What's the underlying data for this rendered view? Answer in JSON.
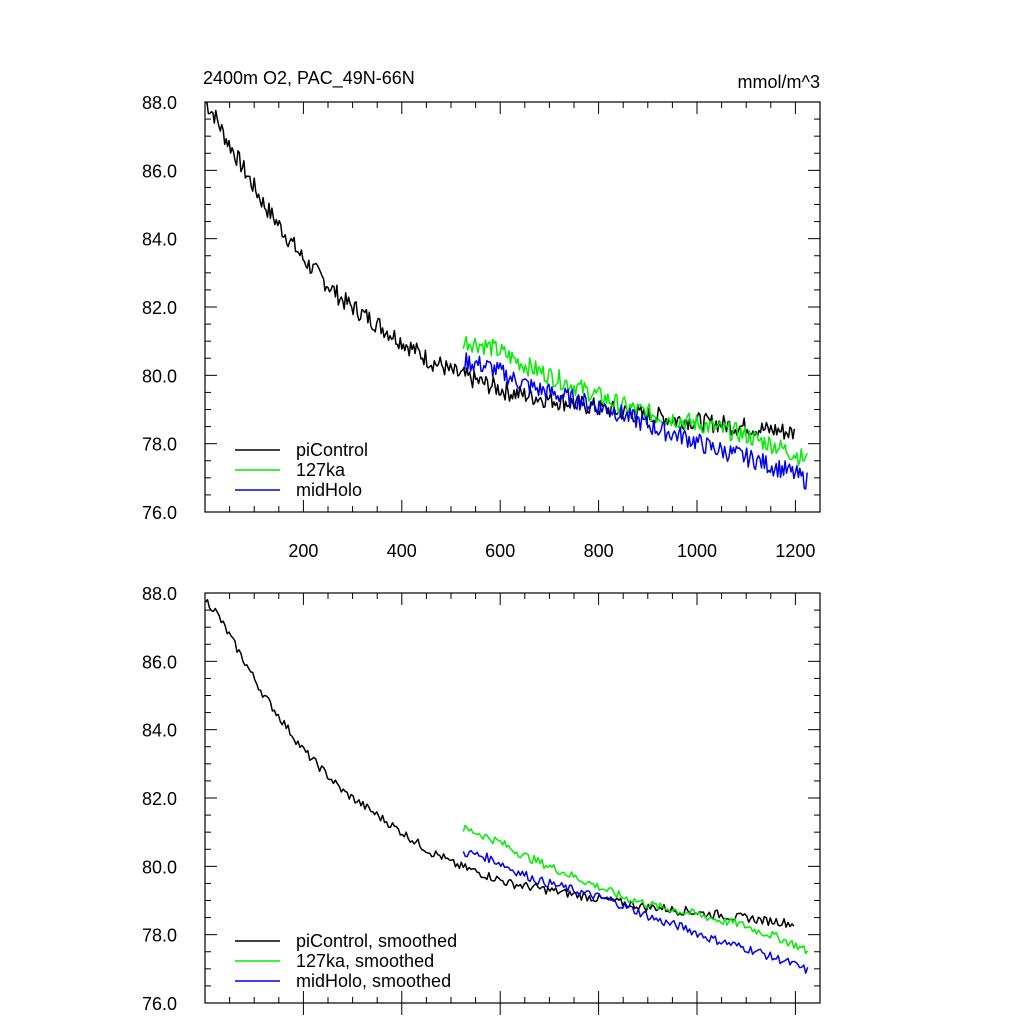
{
  "chart_data": [
    {
      "type": "line",
      "title": "2400m O2, PAC_49N-66N",
      "units": "mmol/m^3",
      "ylim": [
        76,
        88
      ],
      "xlim": [
        0,
        1250
      ],
      "yticks": [
        "88.0",
        "86.0",
        "84.0",
        "82.0",
        "80.0",
        "78.0",
        "76.0"
      ],
      "xticks": [
        "200",
        "400",
        "600",
        "800",
        "1000",
        "1200"
      ],
      "legend_placement": "bottom-left",
      "series": [
        {
          "name": "piControl",
          "color": "#000000",
          "x": [
            1,
            20,
            40,
            60,
            80,
            100,
            120,
            140,
            160,
            180,
            200,
            220,
            240,
            260,
            280,
            300,
            320,
            340,
            360,
            380,
            400,
            420,
            440,
            460,
            480,
            500,
            520,
            540,
            560,
            580,
            600,
            620,
            640,
            660,
            680,
            700,
            720,
            740,
            760,
            780,
            800,
            820,
            840,
            860,
            880,
            900,
            920,
            940,
            960,
            980,
            1000,
            1020,
            1040,
            1060,
            1080,
            1100,
            1120,
            1140,
            1160,
            1180,
            1200
          ],
          "values": [
            88.0,
            87.6,
            87.0,
            86.5,
            86.0,
            85.5,
            85.0,
            84.6,
            84.2,
            83.8,
            83.4,
            83.1,
            82.8,
            82.5,
            82.2,
            82.0,
            81.8,
            81.6,
            81.4,
            81.2,
            81.0,
            80.8,
            80.6,
            80.4,
            80.3,
            80.1,
            80.0,
            79.9,
            79.8,
            79.7,
            79.6,
            79.5,
            79.45,
            79.4,
            79.35,
            79.3,
            79.25,
            79.2,
            79.15,
            79.1,
            79.05,
            79.0,
            78.95,
            78.9,
            78.85,
            78.8,
            78.8,
            78.75,
            78.7,
            78.7,
            78.65,
            78.6,
            78.6,
            78.55,
            78.5,
            78.5,
            78.45,
            78.4,
            78.4,
            78.35,
            78.3
          ]
        },
        {
          "name": "127ka",
          "color": "#00ee00",
          "x": [
            525,
            550,
            575,
            600,
            625,
            650,
            675,
            700,
            725,
            750,
            775,
            800,
            825,
            850,
            875,
            900,
            925,
            950,
            975,
            1000,
            1025,
            1050,
            1075,
            1100,
            1125,
            1150,
            1175,
            1200,
            1225
          ],
          "values": [
            81.0,
            80.95,
            80.85,
            80.7,
            80.5,
            80.3,
            80.15,
            80.0,
            79.85,
            79.7,
            79.55,
            79.4,
            79.25,
            79.1,
            79.0,
            78.9,
            78.8,
            78.75,
            78.65,
            78.6,
            78.5,
            78.4,
            78.35,
            78.25,
            78.1,
            78.0,
            77.85,
            77.7,
            77.5
          ]
        },
        {
          "name": "midHolo",
          "color": "#0000ee",
          "x": [
            525,
            550,
            575,
            600,
            625,
            650,
            675,
            700,
            725,
            750,
            775,
            800,
            825,
            850,
            875,
            900,
            925,
            950,
            975,
            1000,
            1025,
            1050,
            1075,
            1100,
            1125,
            1150,
            1175,
            1200,
            1225
          ],
          "values": [
            80.4,
            80.35,
            80.25,
            80.1,
            79.9,
            79.75,
            79.6,
            79.5,
            79.4,
            79.3,
            79.2,
            79.1,
            79.0,
            78.85,
            78.7,
            78.55,
            78.4,
            78.3,
            78.2,
            78.05,
            77.9,
            77.8,
            77.7,
            77.6,
            77.5,
            77.35,
            77.25,
            77.1,
            76.9
          ]
        }
      ]
    },
    {
      "type": "line",
      "title": "",
      "ylim": [
        76,
        88
      ],
      "xlim": [
        0,
        1250
      ],
      "yticks": [
        "88.0",
        "86.0",
        "84.0",
        "82.0",
        "80.0",
        "78.0",
        "76.0"
      ],
      "legend_placement": "bottom-left",
      "series": [
        {
          "name": "piControl, smoothed",
          "color": "#000000",
          "x": [
            1,
            20,
            40,
            60,
            80,
            100,
            120,
            140,
            160,
            180,
            200,
            220,
            240,
            260,
            280,
            300,
            320,
            340,
            360,
            380,
            400,
            420,
            440,
            460,
            480,
            500,
            520,
            540,
            560,
            580,
            600,
            620,
            640,
            660,
            680,
            700,
            720,
            740,
            760,
            780,
            800,
            820,
            840,
            860,
            880,
            900,
            920,
            940,
            960,
            980,
            1000,
            1020,
            1040,
            1060,
            1080,
            1100,
            1120,
            1140,
            1160,
            1180,
            1200
          ],
          "values": [
            87.8,
            87.5,
            87.0,
            86.5,
            86.0,
            85.5,
            85.0,
            84.6,
            84.2,
            83.8,
            83.4,
            83.1,
            82.8,
            82.5,
            82.2,
            82.0,
            81.8,
            81.6,
            81.4,
            81.2,
            81.0,
            80.8,
            80.6,
            80.4,
            80.3,
            80.1,
            80.0,
            79.9,
            79.8,
            79.7,
            79.6,
            79.5,
            79.45,
            79.4,
            79.35,
            79.3,
            79.25,
            79.2,
            79.15,
            79.1,
            79.05,
            79.0,
            78.95,
            78.9,
            78.85,
            78.8,
            78.8,
            78.75,
            78.7,
            78.7,
            78.65,
            78.6,
            78.6,
            78.55,
            78.5,
            78.5,
            78.45,
            78.4,
            78.4,
            78.35,
            78.3
          ]
        },
        {
          "name": "127ka, smoothed",
          "color": "#00ee00",
          "x": [
            525,
            550,
            575,
            600,
            625,
            650,
            675,
            700,
            725,
            750,
            775,
            800,
            825,
            850,
            875,
            900,
            925,
            950,
            975,
            1000,
            1025,
            1050,
            1075,
            1100,
            1125,
            1150,
            1175,
            1200,
            1225
          ],
          "values": [
            81.1,
            81.0,
            80.85,
            80.7,
            80.5,
            80.3,
            80.15,
            80.0,
            79.85,
            79.7,
            79.55,
            79.4,
            79.25,
            79.1,
            79.0,
            78.9,
            78.8,
            78.75,
            78.65,
            78.6,
            78.5,
            78.4,
            78.35,
            78.25,
            78.1,
            78.0,
            77.85,
            77.7,
            77.5
          ]
        },
        {
          "name": "midHolo, smoothed",
          "color": "#0000ee",
          "x": [
            525,
            550,
            575,
            600,
            625,
            650,
            675,
            700,
            725,
            750,
            775,
            800,
            825,
            850,
            875,
            900,
            925,
            950,
            975,
            1000,
            1025,
            1050,
            1075,
            1100,
            1125,
            1150,
            1175,
            1200,
            1225
          ],
          "values": [
            80.4,
            80.35,
            80.25,
            80.1,
            79.9,
            79.75,
            79.6,
            79.5,
            79.4,
            79.3,
            79.2,
            79.1,
            79.0,
            78.85,
            78.7,
            78.55,
            78.4,
            78.3,
            78.2,
            78.05,
            77.9,
            77.8,
            77.7,
            77.6,
            77.5,
            77.35,
            77.25,
            77.1,
            76.95
          ]
        }
      ]
    }
  ]
}
